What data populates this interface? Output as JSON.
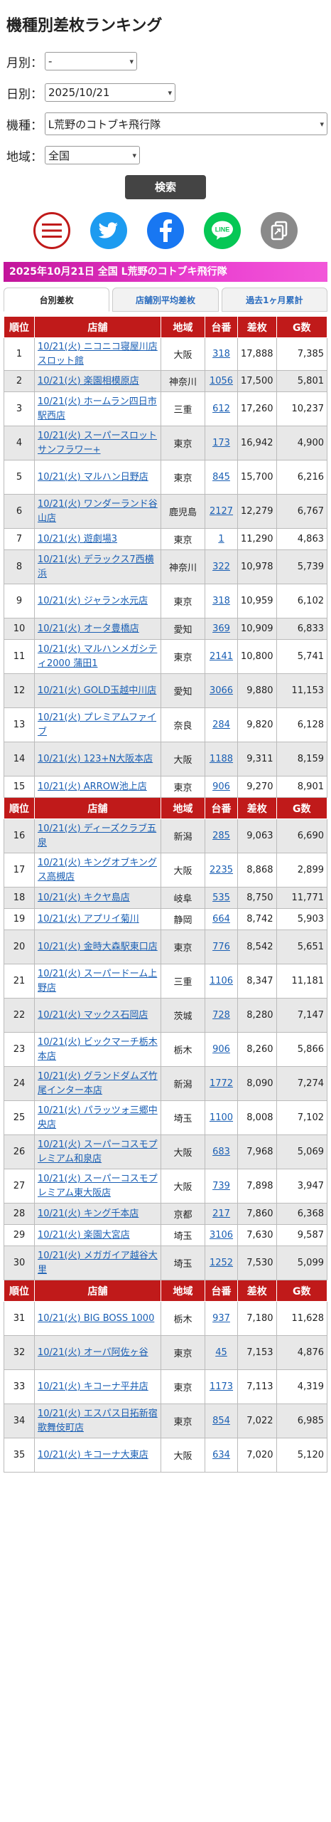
{
  "title": "機種別差枚ランキング",
  "form": {
    "month_label": "月別：",
    "month_value": "-",
    "day_label": "日別：",
    "day_value": "2025/10/21",
    "machine_label": "機種：",
    "machine_value": "L荒野のコトブキ飛行隊",
    "area_label": "地域：",
    "area_value": "全国",
    "search_label": "検索"
  },
  "share": {
    "menu_icon": "hamburger-menu-icon",
    "twitter_icon": "twitter-bird-icon",
    "facebook_icon": "facebook-f-icon",
    "line_icon": "line-icon",
    "line_text": "LINE",
    "copy_icon": "copy-link-icon"
  },
  "colors": {
    "header_red": "#c01a1a",
    "banner_pink": "#ea3ed0",
    "link_blue": "#1a5fb4",
    "twitter": "#1d9bf0",
    "facebook": "#1877f2",
    "line": "#06c755"
  },
  "banner": "2025年10月21日 全国 L荒野のコトブキ飛行隊",
  "tabs": [
    "台別差枚",
    "店舗別平均差枚",
    "過去1ヶ月累計"
  ],
  "table_headers": [
    "順位",
    "店舗",
    "地域",
    "台番",
    "差枚",
    "G数"
  ],
  "rows": [
    {
      "rank": "1",
      "store": "10/21(火) ニコニコ寝屋川店スロット館",
      "region": "大阪",
      "unit": "318",
      "diff": "17,888",
      "games": "7,385"
    },
    {
      "rank": "2",
      "store": "10/21(火) 楽園相模原店",
      "region": "神奈川",
      "unit": "1056",
      "diff": "17,500",
      "games": "5,801"
    },
    {
      "rank": "3",
      "store": "10/21(火) ホームラン四日市駅西店",
      "region": "三重",
      "unit": "612",
      "diff": "17,260",
      "games": "10,237"
    },
    {
      "rank": "4",
      "store": "10/21(火) スーパースロットサンフラワー+",
      "region": "東京",
      "unit": "173",
      "diff": "16,942",
      "games": "4,900"
    },
    {
      "rank": "5",
      "store": "10/21(火) マルハン日野店",
      "region": "東京",
      "unit": "845",
      "diff": "15,700",
      "games": "6,216"
    },
    {
      "rank": "6",
      "store": "10/21(火) ワンダーランド谷山店",
      "region": "鹿児島",
      "unit": "2127",
      "diff": "12,279",
      "games": "6,767"
    },
    {
      "rank": "7",
      "store": "10/21(火) 遊劇場3",
      "region": "東京",
      "unit": "1",
      "diff": "11,290",
      "games": "4,863"
    },
    {
      "rank": "8",
      "store": "10/21(火) デラックス7西横浜",
      "region": "神奈川",
      "unit": "322",
      "diff": "10,978",
      "games": "5,739"
    },
    {
      "rank": "9",
      "store": "10/21(火) ジャラン水元店",
      "region": "東京",
      "unit": "318",
      "diff": "10,959",
      "games": "6,102"
    },
    {
      "rank": "10",
      "store": "10/21(火) オータ豊橋店",
      "region": "愛知",
      "unit": "369",
      "diff": "10,909",
      "games": "6,833"
    },
    {
      "rank": "11",
      "store": "10/21(火) マルハンメガシティ2000 蒲田1",
      "region": "東京",
      "unit": "2141",
      "diff": "10,800",
      "games": "5,741"
    },
    {
      "rank": "12",
      "store": "10/21(火) GOLD玉越中川店",
      "region": "愛知",
      "unit": "3066",
      "diff": "9,880",
      "games": "11,153"
    },
    {
      "rank": "13",
      "store": "10/21(火) プレミアムファイブ",
      "region": "奈良",
      "unit": "284",
      "diff": "9,820",
      "games": "6,128"
    },
    {
      "rank": "14",
      "store": "10/21(火) 123+N大阪本店",
      "region": "大阪",
      "unit": "1188",
      "diff": "9,311",
      "games": "8,159"
    },
    {
      "rank": "15",
      "store": "10/21(火) ARROW池上店",
      "region": "東京",
      "unit": "906",
      "diff": "9,270",
      "games": "8,901"
    },
    {
      "rank": "16",
      "store": "10/21(火) ディーズクラブ五泉",
      "region": "新潟",
      "unit": "285",
      "diff": "9,063",
      "games": "6,690"
    },
    {
      "rank": "17",
      "store": "10/21(火) キングオブキングス高槻店",
      "region": "大阪",
      "unit": "2235",
      "diff": "8,868",
      "games": "2,899"
    },
    {
      "rank": "18",
      "store": "10/21(火) キクヤ島店",
      "region": "岐阜",
      "unit": "535",
      "diff": "8,750",
      "games": "11,771"
    },
    {
      "rank": "19",
      "store": "10/21(火) アプリイ菊川",
      "region": "静岡",
      "unit": "664",
      "diff": "8,742",
      "games": "5,903"
    },
    {
      "rank": "20",
      "store": "10/21(火) 金時大森駅東口店",
      "region": "東京",
      "unit": "776",
      "diff": "8,542",
      "games": "5,651"
    },
    {
      "rank": "21",
      "store": "10/21(火) スーパードーム上野店",
      "region": "三重",
      "unit": "1106",
      "diff": "8,347",
      "games": "11,181"
    },
    {
      "rank": "22",
      "store": "10/21(火) マックス石岡店",
      "region": "茨城",
      "unit": "728",
      "diff": "8,280",
      "games": "7,147"
    },
    {
      "rank": "23",
      "store": "10/21(火) ビックマーチ栃木本店",
      "region": "栃木",
      "unit": "906",
      "diff": "8,260",
      "games": "5,866"
    },
    {
      "rank": "24",
      "store": "10/21(火) グランドダムズ竹尾インター本店",
      "region": "新潟",
      "unit": "1772",
      "diff": "8,090",
      "games": "7,274"
    },
    {
      "rank": "25",
      "store": "10/21(火) パラッツォ三郷中央店",
      "region": "埼玉",
      "unit": "1100",
      "diff": "8,008",
      "games": "7,102"
    },
    {
      "rank": "26",
      "store": "10/21(火) スーパーコスモプレミアム和泉店",
      "region": "大阪",
      "unit": "683",
      "diff": "7,968",
      "games": "5,069"
    },
    {
      "rank": "27",
      "store": "10/21(火) スーパーコスモプレミアム東大阪店",
      "region": "大阪",
      "unit": "739",
      "diff": "7,898",
      "games": "3,947"
    },
    {
      "rank": "28",
      "store": "10/21(火) キング千本店",
      "region": "京都",
      "unit": "217",
      "diff": "7,860",
      "games": "6,368"
    },
    {
      "rank": "29",
      "store": "10/21(火) 楽園大宮店",
      "region": "埼玉",
      "unit": "3106",
      "diff": "7,630",
      "games": "9,587"
    },
    {
      "rank": "30",
      "store": "10/21(火) メガガイア越谷大里",
      "region": "埼玉",
      "unit": "1252",
      "diff": "7,530",
      "games": "5,099"
    },
    {
      "rank": "31",
      "store": "10/21(火) BIG BOSS 1000",
      "region": "栃木",
      "unit": "937",
      "diff": "7,180",
      "games": "11,628"
    },
    {
      "rank": "32",
      "store": "10/21(火) オーパ阿佐ヶ谷",
      "region": "東京",
      "unit": "45",
      "diff": "7,153",
      "games": "4,876"
    },
    {
      "rank": "33",
      "store": "10/21(火) キコーナ平井店",
      "region": "東京",
      "unit": "1173",
      "diff": "7,113",
      "games": "4,319"
    },
    {
      "rank": "34",
      "store": "10/21(火) エスパス日拓新宿歌舞伎町店",
      "region": "東京",
      "unit": "854",
      "diff": "7,022",
      "games": "6,985"
    },
    {
      "rank": "35",
      "store": "10/21(火) キコーナ大東店",
      "region": "大阪",
      "unit": "634",
      "diff": "7,020",
      "games": "5,120"
    }
  ]
}
